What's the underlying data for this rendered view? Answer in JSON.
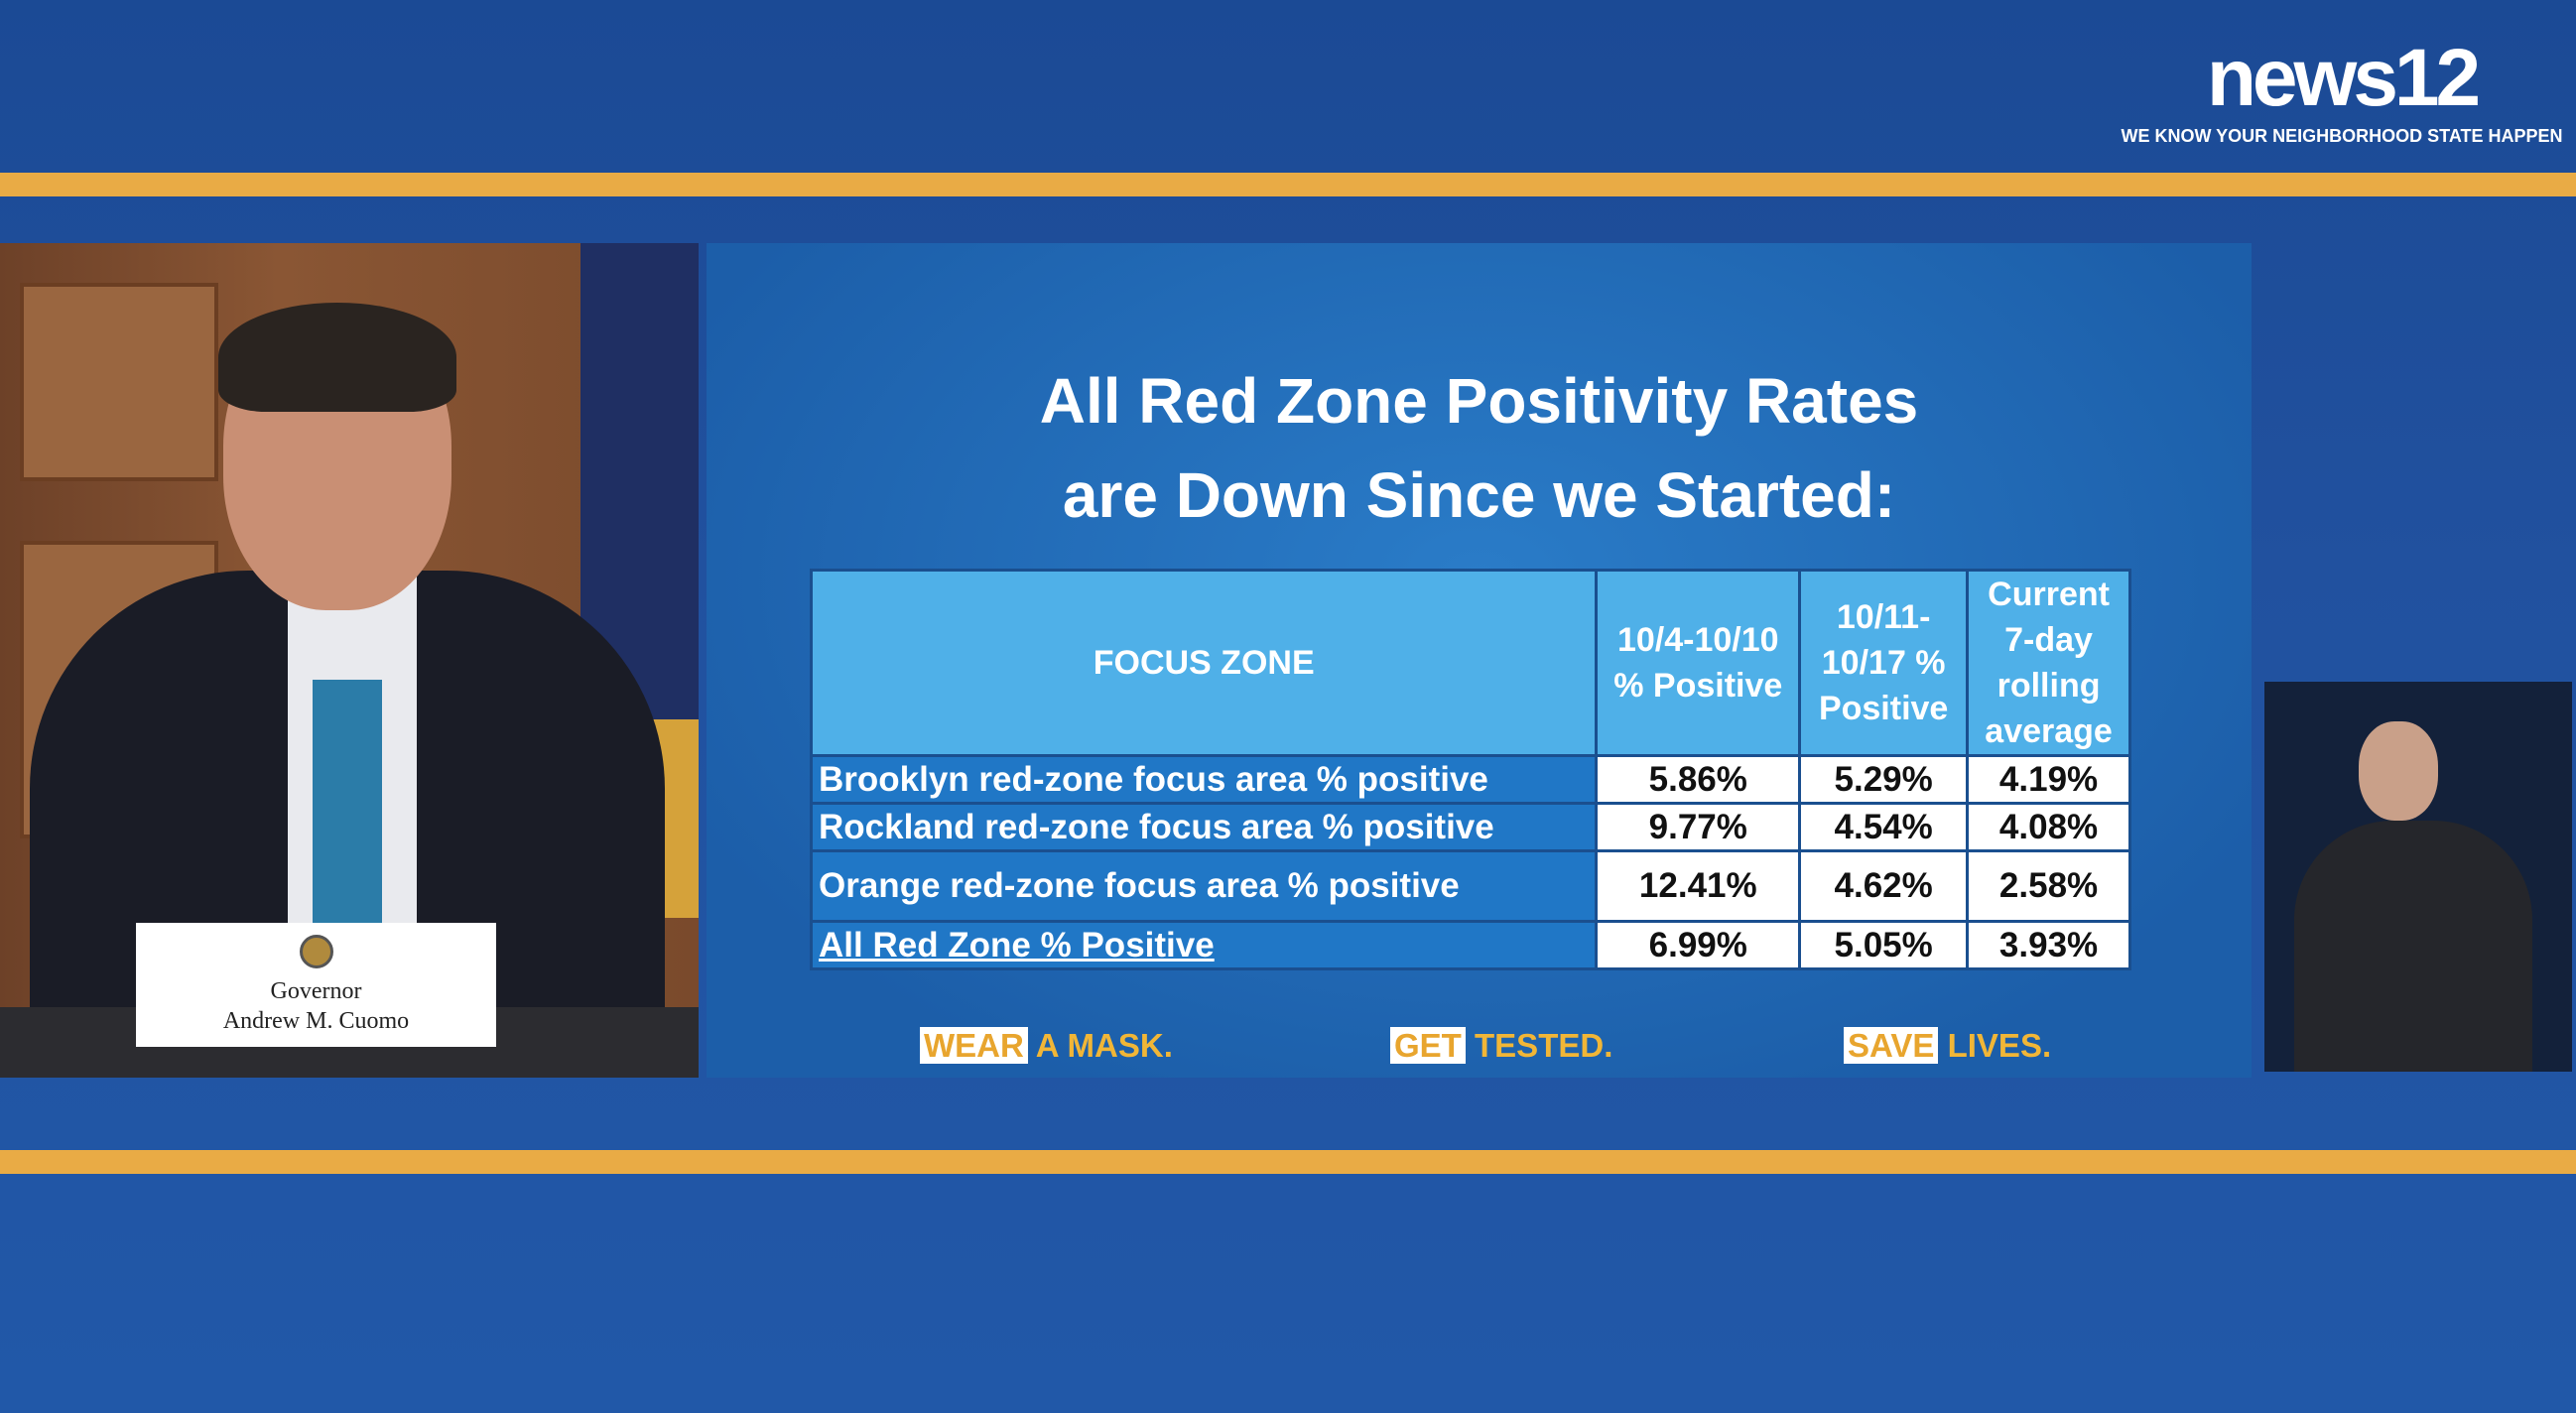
{
  "channel_logo": {
    "text": "news12",
    "tagline": "WE KNOW YOUR NEIGHBORHOOD STATE HAPPEN"
  },
  "nameplate": {
    "line1": "Governor",
    "line2": "Andrew M. Cuomo"
  },
  "slide": {
    "title_line1": "All Red Zone Positivity Rates",
    "title_line2": "are Down Since we Started:",
    "table": {
      "headers": [
        "FOCUS ZONE",
        "10/4-10/10 % Positive",
        "10/11-10/17 % Positive",
        "Current 7-day rolling average"
      ],
      "rows": [
        {
          "zone": "Brooklyn red-zone focus area % positive",
          "w1": "5.86%",
          "w2": "5.29%",
          "avg": "4.19%"
        },
        {
          "zone": "Rockland red-zone focus area % positive",
          "w1": "9.77%",
          "w2": "4.54%",
          "avg": "4.08%"
        },
        {
          "zone": "Orange red-zone focus area % positive",
          "w1": "12.41%",
          "w2": "4.62%",
          "avg": "2.58%"
        },
        {
          "zone": "All Red Zone % Positive",
          "w1": "6.99%",
          "w2": "5.05%",
          "avg": "3.93%"
        }
      ]
    },
    "slogans": [
      {
        "box": "WEAR",
        "rest": " A MASK."
      },
      {
        "box": "GET",
        "rest": " TESTED."
      },
      {
        "box": "SAVE",
        "rest": " LIVES."
      }
    ]
  },
  "colors": {
    "stripe": "#e9ab45",
    "background": "#1d4f9c",
    "header": "#4fb0e8",
    "label_cell": "#2077c6"
  }
}
